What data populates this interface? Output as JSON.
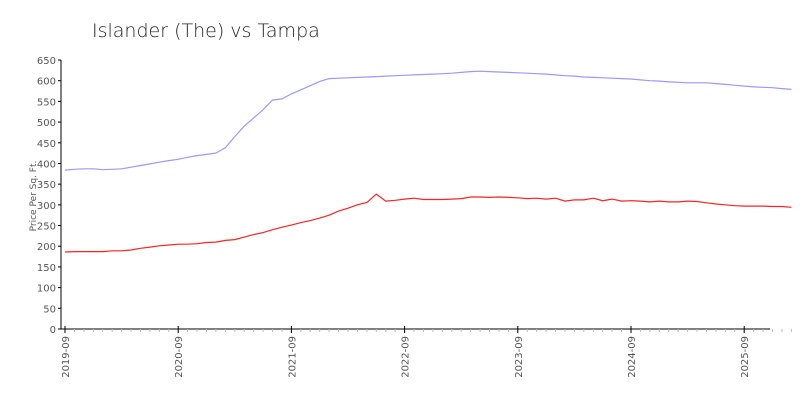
{
  "chart_data": {
    "type": "line",
    "title": "Islander (The) vs Tampa",
    "xlabel": "",
    "ylabel": "Price Per Sq. Ft.",
    "ylim": [
      0,
      650
    ],
    "yticks": [
      "0",
      "50",
      "100",
      "150",
      "200",
      "250",
      "300",
      "350",
      "400",
      "450",
      "500",
      "550",
      "600",
      "650"
    ],
    "xticks": [
      "2019-09",
      "2020-09",
      "2021-09",
      "2022-09",
      "2023-09",
      "2024-09",
      "2025-09"
    ],
    "x_start": "2019-09",
    "x_end": "2026-02",
    "grid": false,
    "legend": "none",
    "series": [
      {
        "name": "Islander (The)",
        "color": "#9999ff",
        "values": [
          384,
          386,
          387,
          387,
          385,
          386,
          387,
          391,
          395,
          399,
          403,
          407,
          410,
          415,
          419,
          422,
          425,
          438,
          465,
          490,
          510,
          530,
          553,
          556,
          568,
          578,
          588,
          598,
          605,
          606,
          607,
          608,
          609,
          610,
          611,
          612,
          613,
          614,
          615,
          616,
          617,
          618,
          620,
          622,
          623,
          622,
          621,
          620,
          619,
          618,
          617,
          616,
          614,
          612,
          611,
          609,
          608,
          607,
          606,
          605,
          604,
          602,
          600,
          599,
          597,
          596,
          595,
          595,
          595,
          593,
          591,
          589,
          587,
          585,
          584,
          583,
          581,
          579
        ]
      },
      {
        "name": "Tampa",
        "color": "#ff2222",
        "values": [
          186,
          187,
          187,
          187,
          187,
          189,
          189,
          191,
          195,
          198,
          201,
          203,
          205,
          205,
          206,
          209,
          210,
          214,
          216,
          222,
          228,
          233,
          240,
          246,
          251,
          257,
          262,
          268,
          275,
          285,
          292,
          300,
          306,
          326,
          309,
          311,
          314,
          316,
          313,
          313,
          313,
          314,
          315,
          319,
          319,
          318,
          319,
          318,
          317,
          315,
          316,
          314,
          316,
          309,
          312,
          312,
          316,
          310,
          314,
          309,
          310,
          309,
          307,
          309,
          307,
          307,
          309,
          308,
          305,
          302,
          300,
          298,
          297,
          297,
          297,
          296,
          296,
          294
        ]
      }
    ]
  }
}
